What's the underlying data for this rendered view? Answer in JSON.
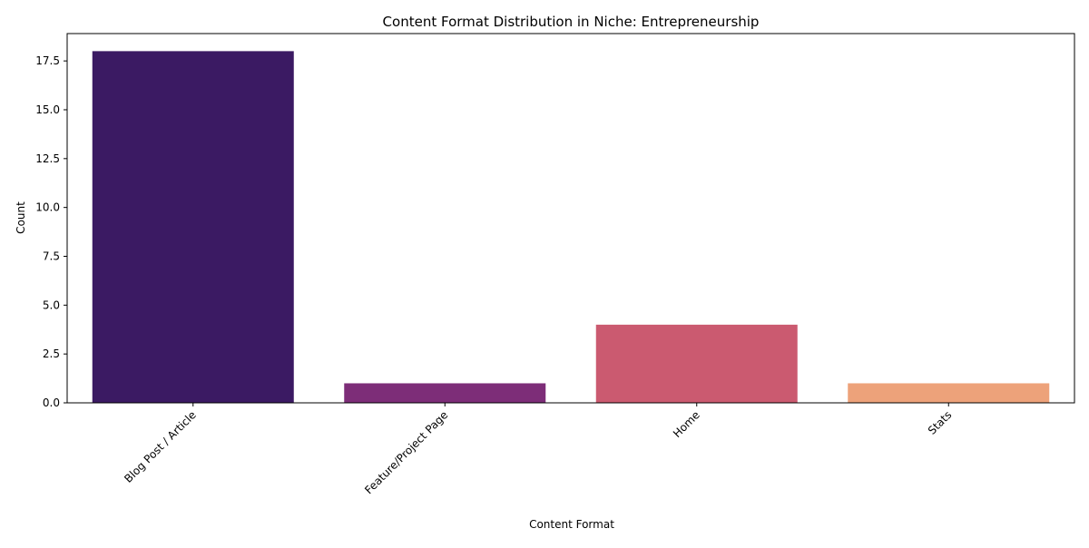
{
  "chart_data": {
    "type": "bar",
    "title": "Content Format Distribution in Niche: Entrepreneurship",
    "xlabel": "Content Format",
    "ylabel": "Count",
    "categories": [
      "Blog Post / Article",
      "Feature/Project Page",
      "Home",
      "Stats"
    ],
    "values": [
      18,
      1,
      4,
      1
    ],
    "colors": [
      "#3b1a63",
      "#7d2d78",
      "#cb5a70",
      "#eda27a"
    ],
    "ylim": [
      0,
      18.9
    ],
    "yticks": [
      0,
      2.5,
      5,
      7.5,
      10,
      12.5,
      15,
      17.5
    ],
    "ytick_labels": [
      "0.0",
      "2.5",
      "5.0",
      "7.5",
      "10.0",
      "12.5",
      "15.0",
      "17.5"
    ],
    "grid": false,
    "legend": "none"
  }
}
